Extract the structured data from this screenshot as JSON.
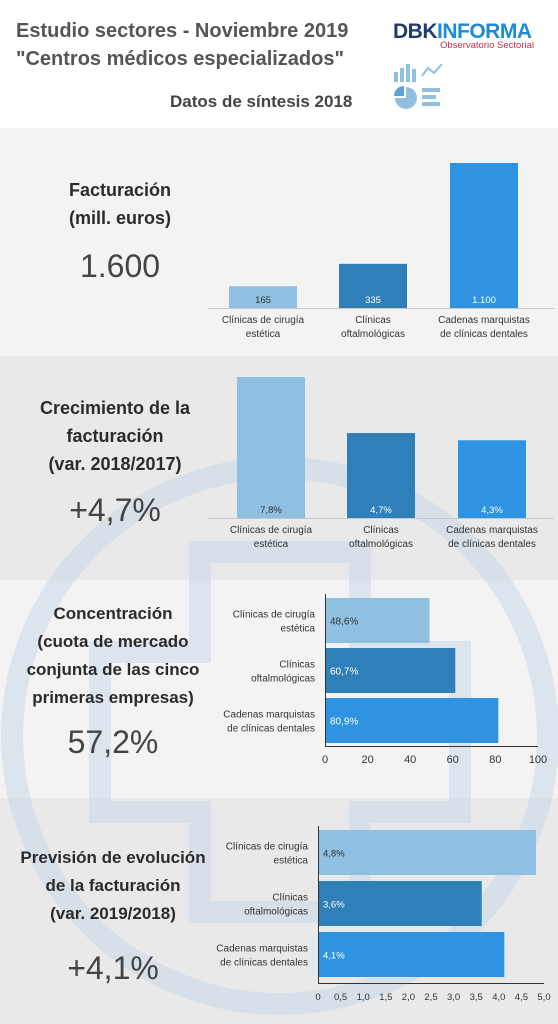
{
  "header": {
    "title_line1": "Estudio sectores - Noviembre 2019",
    "title_line2": "\"Centros médicos especializados\"",
    "subtitle": "Datos de síntesis 2018",
    "brand_part1": "DBK",
    "brand_part2": "INFORMA",
    "brand_sub": "Observatorio Sectorial"
  },
  "sections": [
    {
      "label_lines": [
        "Facturación",
        "(mill. euros)"
      ],
      "big_value": "1.600"
    },
    {
      "label_lines": [
        "Crecimiento de la",
        "facturación",
        "(var. 2018/2017)"
      ],
      "big_value": "+4,7%"
    },
    {
      "label_lines": [
        "Concentración",
        "(cuota de mercado",
        "conjunta de las cinco",
        "primeras empresas)"
      ],
      "big_value": "57,2%"
    },
    {
      "label_lines": [
        "Previsión de evolución",
        "de la facturación",
        "(var. 2019/2018)"
      ],
      "big_value": "+4,1%"
    }
  ],
  "colors": {
    "light": "#8fc0e2",
    "mid": "#2f7fb8",
    "bright": "#2e93e0"
  },
  "chart_data": [
    {
      "type": "bar",
      "categories": [
        [
          "Clínicas de cirugía",
          "estética"
        ],
        [
          "Clínicas",
          "oftalmológicas"
        ],
        [
          "Cadenas marquistas",
          "de clínicas dentales"
        ]
      ],
      "values": [
        165,
        335,
        1100
      ],
      "data_labels": [
        "165",
        "335",
        "1.100"
      ]
    },
    {
      "type": "bar",
      "categories": [
        [
          "Clínicas de cirugía",
          "estética"
        ],
        [
          "Clínicas",
          "oftalmológicas"
        ],
        [
          "Cadenas marquistas",
          "de clínicas dentales"
        ]
      ],
      "values": [
        7.8,
        4.7,
        4.3
      ],
      "data_labels": [
        "7,8%",
        "4,7%",
        "4,3%"
      ]
    },
    {
      "type": "bar",
      "orientation": "horizontal",
      "categories": [
        [
          "Clínicas de cirugía",
          "estética"
        ],
        [
          "Clínicas",
          "oftalmológicas"
        ],
        [
          "Cadenas marquistas",
          "de clínicas dentales"
        ]
      ],
      "values": [
        48.6,
        60.7,
        80.9
      ],
      "data_labels": [
        "48,6%",
        "60,7%",
        "80,9%"
      ],
      "xlim": [
        0,
        100
      ],
      "ticks": [
        "0",
        "20",
        "40",
        "60",
        "80",
        "100"
      ]
    },
    {
      "type": "bar",
      "orientation": "horizontal",
      "categories": [
        [
          "Clínicas de cirugía",
          "estética"
        ],
        [
          "Clínicas",
          "oftalmológicas"
        ],
        [
          "Cadenas marquistas",
          "de clínicas dentales"
        ]
      ],
      "values": [
        4.8,
        3.6,
        4.1
      ],
      "data_labels": [
        "4,8%",
        "3,6%",
        "4,1%"
      ],
      "xlim": [
        0,
        5
      ],
      "ticks": [
        "0",
        "0,5",
        "1,0",
        "1,5",
        "2,0",
        "2,5",
        "3,0",
        "3,5",
        "4,0",
        "4,5",
        "5,0"
      ]
    }
  ]
}
